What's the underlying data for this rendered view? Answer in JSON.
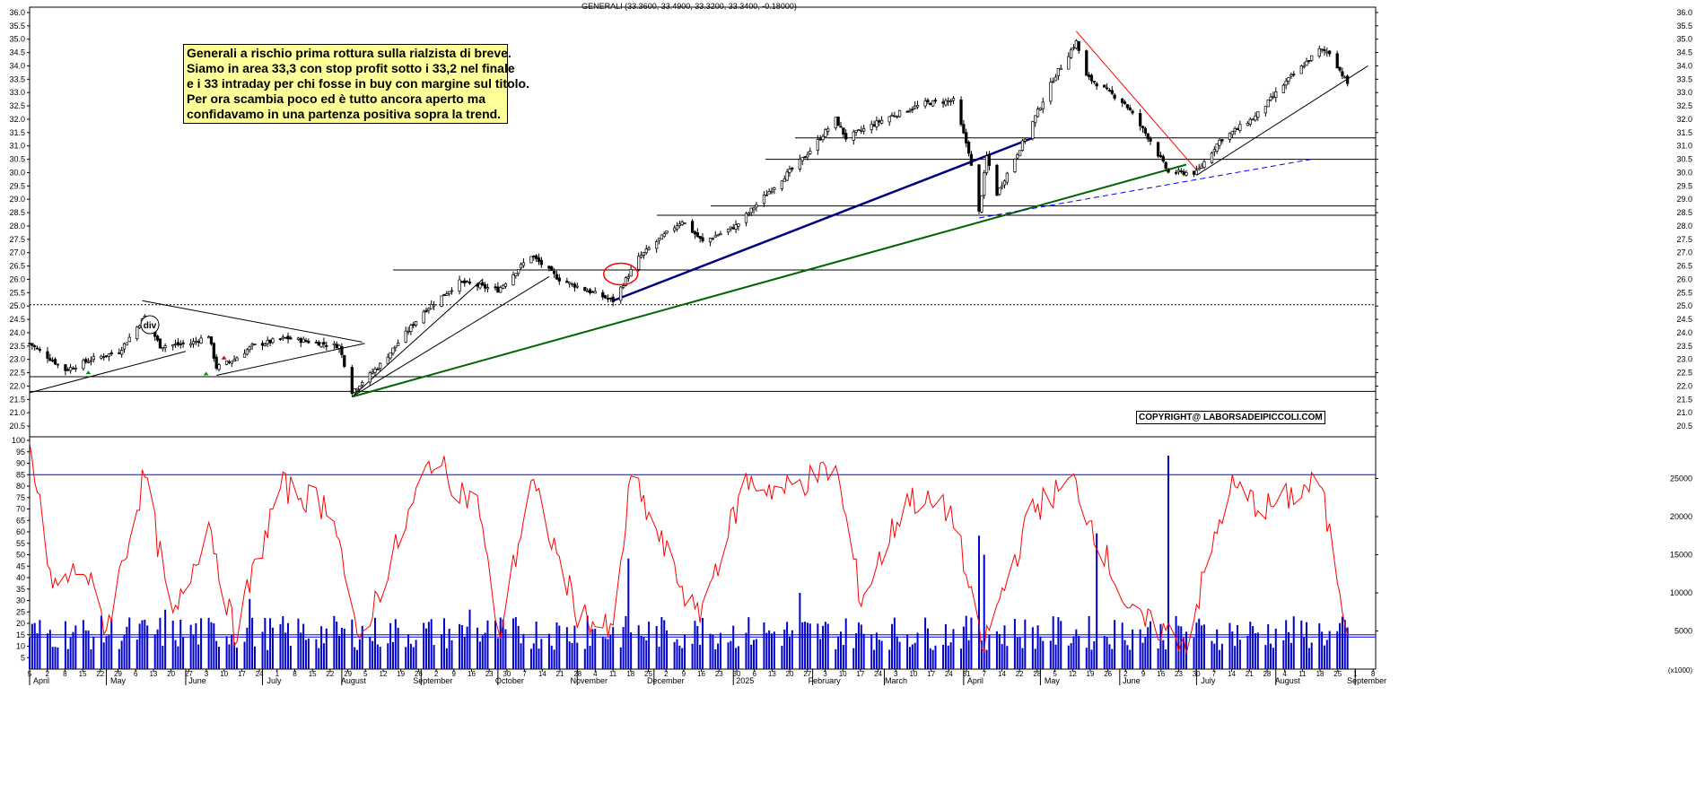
{
  "header": {
    "title": "GENERALI (33.3600, 33.4900, 33.3200, 33.3400, -0.18000)"
  },
  "annotation": {
    "lines": [
      "Generali a rischio prima rottura sulla rialzista di breve.",
      "Siamo in area 33,3 con stop profit sotto i 33,2 nel finale",
      "e i 33 intraday per chi fosse in buy con margine sul titolo.",
      "Per ora scambia poco ed è tutto ancora aperto ma",
      "confidavamo in una partenza positiva sopra la trend."
    ]
  },
  "copyright": "COPYRIGHT@ LABORSADEIPICCOLI.COM",
  "div_marker": "div",
  "colors": {
    "price": "#000000",
    "rsi": "#ff0000",
    "volume": "#0000cc",
    "hline": "#000000",
    "support_green": "#006400",
    "trend_blue": "#000080",
    "resistance_red": "#ff0000",
    "dashed_blue": "#0000ff",
    "annotation_bg": "#ffff99"
  },
  "chart_data": [
    {
      "type": "candlestick",
      "title": "GENERALI (33.3600, 33.4900, 33.3200, 33.3400, -0.18000)",
      "ylim": [
        20.2,
        36.2
      ],
      "yticks": [
        "20.5",
        "21.0",
        "21.5",
        "22.0",
        "22.5",
        "23.0",
        "23.5",
        "24.0",
        "24.5",
        "25.0",
        "25.5",
        "26.0",
        "26.5",
        "27.0",
        "27.5",
        "28.0",
        "28.5",
        "29.0",
        "29.5",
        "30.0",
        "30.5",
        "31.0",
        "31.5",
        "32.0",
        "32.5",
        "33.0",
        "33.5",
        "34.0",
        "34.5",
        "35.0",
        "35.5",
        "36.0"
      ],
      "last": {
        "open": 33.36,
        "high": 33.49,
        "low": 33.32,
        "close": 33.34,
        "change": -0.18
      },
      "anchors": [
        {
          "date": "2024-04-01",
          "close": 23.6
        },
        {
          "date": "2024-04-15",
          "close": 22.6
        },
        {
          "date": "2024-04-25",
          "close": 23.0
        },
        {
          "date": "2024-05-06",
          "close": 23.3
        },
        {
          "date": "2024-05-16",
          "close": 24.6
        },
        {
          "date": "2024-05-22",
          "close": 23.5
        },
        {
          "date": "2024-06-03",
          "close": 23.6
        },
        {
          "date": "2024-06-10",
          "close": 23.9
        },
        {
          "date": "2024-06-13",
          "close": 22.7
        },
        {
          "date": "2024-06-20",
          "close": 23.0
        },
        {
          "date": "2024-06-27",
          "close": 23.5
        },
        {
          "date": "2024-07-10",
          "close": 23.8
        },
        {
          "date": "2024-07-31",
          "close": 23.5
        },
        {
          "date": "2024-08-05",
          "close": 21.8
        },
        {
          "date": "2024-08-16",
          "close": 22.8
        },
        {
          "date": "2024-09-02",
          "close": 24.8
        },
        {
          "date": "2024-09-16",
          "close": 25.9
        },
        {
          "date": "2024-10-01",
          "close": 25.6
        },
        {
          "date": "2024-10-14",
          "close": 26.9
        },
        {
          "date": "2024-10-25",
          "close": 26.0
        },
        {
          "date": "2024-11-15",
          "close": 25.2
        },
        {
          "date": "2024-11-25",
          "close": 26.8
        },
        {
          "date": "2024-12-03",
          "close": 27.5
        },
        {
          "date": "2024-12-12",
          "close": 28.2
        },
        {
          "date": "2024-12-20",
          "close": 27.4
        },
        {
          "date": "2025-01-02",
          "close": 28.0
        },
        {
          "date": "2025-01-15",
          "close": 29.3
        },
        {
          "date": "2025-01-29",
          "close": 30.6
        },
        {
          "date": "2025-02-10",
          "close": 32.0
        },
        {
          "date": "2025-02-14",
          "close": 31.3
        },
        {
          "date": "2025-03-03",
          "close": 32.1
        },
        {
          "date": "2025-03-17",
          "close": 32.6
        },
        {
          "date": "2025-03-28",
          "close": 32.7
        },
        {
          "date": "2025-04-03",
          "close": 30.8
        },
        {
          "date": "2025-04-07",
          "close": 28.5
        },
        {
          "date": "2025-04-10",
          "close": 30.6
        },
        {
          "date": "2025-04-14",
          "close": 29.2
        },
        {
          "date": "2025-04-25",
          "close": 31.3
        },
        {
          "date": "2025-05-06",
          "close": 33.5
        },
        {
          "date": "2025-05-15",
          "close": 34.9
        },
        {
          "date": "2025-05-19",
          "close": 33.6
        },
        {
          "date": "2025-06-03",
          "close": 32.6
        },
        {
          "date": "2025-06-13",
          "close": 31.2
        },
        {
          "date": "2025-06-20",
          "close": 30.0
        },
        {
          "date": "2025-07-01",
          "close": 30.0
        },
        {
          "date": "2025-07-10",
          "close": 31.2
        },
        {
          "date": "2025-07-24",
          "close": 32.1
        },
        {
          "date": "2025-08-05",
          "close": 33.4
        },
        {
          "date": "2025-08-18",
          "close": 34.6
        },
        {
          "date": "2025-08-22",
          "close": 34.5
        },
        {
          "date": "2025-08-29",
          "close": 33.34
        }
      ],
      "horizontal_levels": [
        21.8,
        22.35,
        25.05,
        26.35,
        28.4,
        28.75,
        30.5,
        31.3
      ],
      "xaxis_days": [
        "5",
        "2",
        "8",
        "15",
        "22",
        "29",
        "6",
        "13",
        "20",
        "27",
        "3",
        "10",
        "17",
        "24",
        "1",
        "8",
        "15",
        "22",
        "29",
        "5",
        "12",
        "19",
        "26",
        "2",
        "9",
        "16",
        "23",
        "30",
        "7",
        "14",
        "21",
        "28",
        "4",
        "11",
        "18",
        "25",
        "2",
        "9",
        "16",
        "23",
        "30",
        "6",
        "13",
        "20",
        "27",
        "3",
        "10",
        "17",
        "24",
        "3",
        "10",
        "17",
        "24",
        "31",
        "7",
        "14",
        "22",
        "28",
        "5",
        "12",
        "19",
        "26",
        "2",
        "9",
        "16",
        "23",
        "30",
        "7",
        "14",
        "21",
        "28",
        "4",
        "11",
        "18",
        "25",
        "1",
        "8"
      ],
      "xaxis_months": [
        "April",
        "May",
        "June",
        "July",
        "August",
        "September",
        "October",
        "November",
        "December",
        "2025",
        "February",
        "March",
        "April",
        "May",
        "June",
        "July",
        "August",
        "September"
      ]
    },
    {
      "type": "line",
      "name": "oscillator",
      "ylim": [
        0,
        100
      ],
      "yticks": [
        "5",
        "10",
        "15",
        "20",
        "25",
        "30",
        "35",
        "40",
        "45",
        "50",
        "55",
        "60",
        "65",
        "70",
        "75",
        "80",
        "85",
        "90",
        "95",
        "100"
      ],
      "levels": [
        15,
        85
      ],
      "anchors": [
        {
          "date": "2024-04-01",
          "value": 98
        },
        {
          "date": "2024-04-10",
          "value": 35
        },
        {
          "date": "2024-04-22",
          "value": 45
        },
        {
          "date": "2024-05-01",
          "value": 18
        },
        {
          "date": "2024-05-16",
          "value": 85
        },
        {
          "date": "2024-05-27",
          "value": 20
        },
        {
          "date": "2024-06-10",
          "value": 65
        },
        {
          "date": "2024-06-20",
          "value": 15
        },
        {
          "date": "2024-07-08",
          "value": 80
        },
        {
          "date": "2024-07-29",
          "value": 70
        },
        {
          "date": "2024-08-07",
          "value": 10
        },
        {
          "date": "2024-09-05",
          "value": 92
        },
        {
          "date": "2024-09-24",
          "value": 70
        },
        {
          "date": "2024-10-01",
          "value": 12
        },
        {
          "date": "2024-10-14",
          "value": 82
        },
        {
          "date": "2024-11-01",
          "value": 25
        },
        {
          "date": "2024-11-15",
          "value": 15
        },
        {
          "date": "2024-11-22",
          "value": 84
        },
        {
          "date": "2024-12-06",
          "value": 50
        },
        {
          "date": "2024-12-18",
          "value": 22
        },
        {
          "date": "2025-01-06",
          "value": 82
        },
        {
          "date": "2025-01-20",
          "value": 78
        },
        {
          "date": "2025-02-10",
          "value": 88
        },
        {
          "date": "2025-02-20",
          "value": 30
        },
        {
          "date": "2025-03-10",
          "value": 75
        },
        {
          "date": "2025-03-28",
          "value": 68
        },
        {
          "date": "2025-04-08",
          "value": 8
        },
        {
          "date": "2025-04-28",
          "value": 70
        },
        {
          "date": "2025-05-14",
          "value": 82
        },
        {
          "date": "2025-06-06",
          "value": 22
        },
        {
          "date": "2025-06-16",
          "value": 18
        },
        {
          "date": "2025-06-27",
          "value": 12
        },
        {
          "date": "2025-07-14",
          "value": 80
        },
        {
          "date": "2025-07-28",
          "value": 70
        },
        {
          "date": "2025-08-18",
          "value": 82
        },
        {
          "date": "2025-08-29",
          "value": 18
        }
      ]
    },
    {
      "type": "bar",
      "name": "volume",
      "ylim": [
        0,
        30000
      ],
      "yticks": [
        "5000",
        "10000",
        "15000",
        "20000",
        "25000"
      ],
      "level": 4200,
      "unit": "(x1000)",
      "typical_range": [
        2500,
        7000
      ],
      "spikes": [
        {
          "date": "2024-05-24",
          "value": 7800
        },
        {
          "date": "2024-06-26",
          "value": 9200
        },
        {
          "date": "2024-08-05",
          "value": 6500
        },
        {
          "date": "2024-09-20",
          "value": 7800
        },
        {
          "date": "2024-11-05",
          "value": 7000
        },
        {
          "date": "2024-11-21",
          "value": 14500
        },
        {
          "date": "2024-12-20",
          "value": 6700
        },
        {
          "date": "2025-01-27",
          "value": 10000
        },
        {
          "date": "2025-04-07",
          "value": 17500
        },
        {
          "date": "2025-04-09",
          "value": 15000
        },
        {
          "date": "2025-05-23",
          "value": 17800
        },
        {
          "date": "2025-06-20",
          "value": 28000
        },
        {
          "date": "2025-08-22",
          "value": 5000
        }
      ]
    }
  ]
}
